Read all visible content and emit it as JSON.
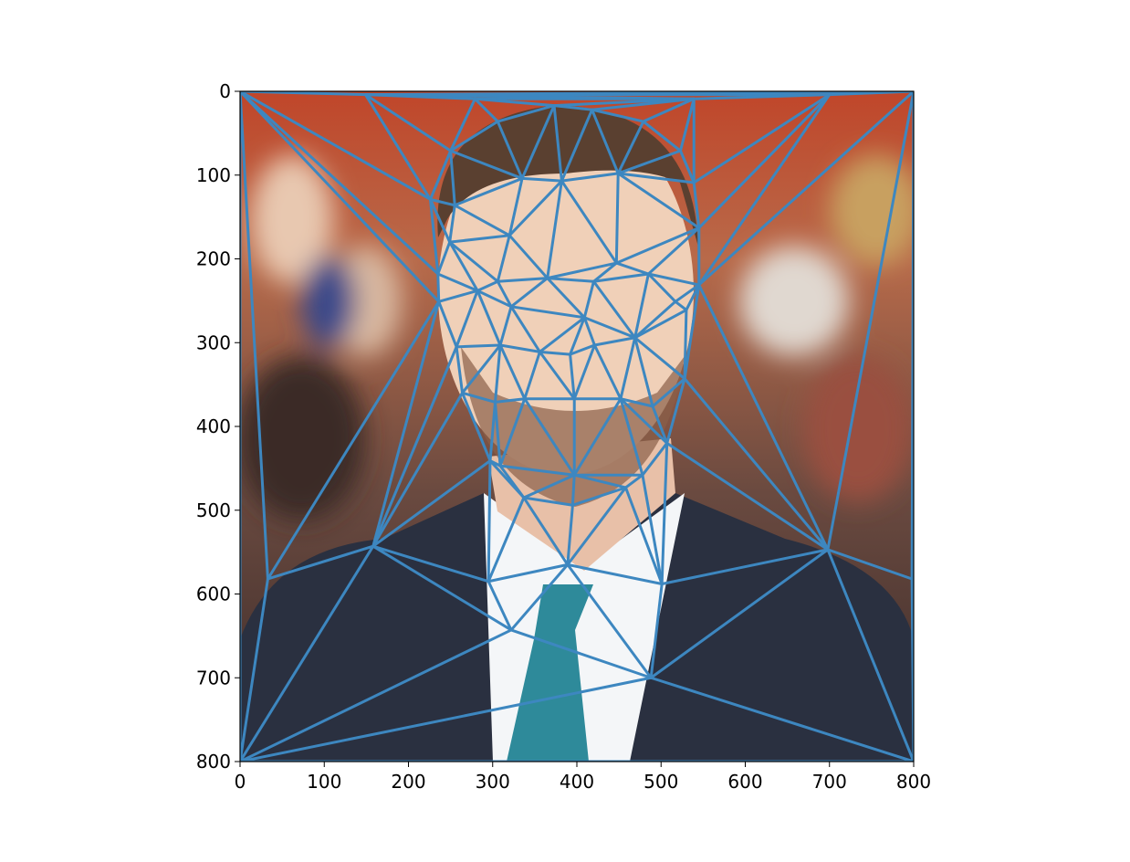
{
  "chart_data": {
    "type": "scatter",
    "subtype": "image with Delaunay triangulation overlay",
    "title": "",
    "xlabel": "",
    "ylabel": "",
    "xlim": [
      0,
      800
    ],
    "ylim": [
      800,
      0
    ],
    "y_inverted": true,
    "grid": false,
    "xticks": [
      "0",
      "100",
      "200",
      "300",
      "400",
      "500",
      "600",
      "700",
      "800"
    ],
    "yticks": [
      "0",
      "100",
      "200",
      "300",
      "400",
      "500",
      "600",
      "700",
      "800"
    ],
    "line_color": "#3d87c0",
    "points": [
      [
        0,
        0
      ],
      [
        800,
        0
      ],
      [
        0,
        800
      ],
      [
        800,
        800
      ],
      [
        33,
        582
      ],
      [
        798,
        582
      ],
      [
        149,
        4
      ],
      [
        279,
        9
      ],
      [
        539,
        9
      ],
      [
        700,
        4
      ],
      [
        158,
        543
      ],
      [
        698,
        547
      ],
      [
        295,
        585
      ],
      [
        501,
        588
      ],
      [
        389,
        565
      ],
      [
        322,
        643
      ],
      [
        488,
        700
      ],
      [
        373,
        17
      ],
      [
        306,
        36
      ],
      [
        250,
        71
      ],
      [
        226,
        129
      ],
      [
        249,
        180
      ],
      [
        235,
        218
      ],
      [
        236,
        251
      ],
      [
        257,
        305
      ],
      [
        264,
        360
      ],
      [
        297,
        441
      ],
      [
        337,
        485
      ],
      [
        395,
        494
      ],
      [
        458,
        473
      ],
      [
        507,
        420
      ],
      [
        528,
        343
      ],
      [
        530,
        261
      ],
      [
        545,
        231
      ],
      [
        545,
        163
      ],
      [
        539,
        109
      ],
      [
        523,
        71
      ],
      [
        479,
        36
      ],
      [
        418,
        22
      ],
      [
        335,
        104
      ],
      [
        382,
        107
      ],
      [
        449,
        98
      ],
      [
        320,
        172
      ],
      [
        447,
        205
      ],
      [
        255,
        136
      ],
      [
        306,
        227
      ],
      [
        365,
        223
      ],
      [
        420,
        227
      ],
      [
        485,
        218
      ],
      [
        517,
        251
      ],
      [
        282,
        238
      ],
      [
        309,
        303
      ],
      [
        356,
        311
      ],
      [
        392,
        314
      ],
      [
        421,
        303
      ],
      [
        469,
        294
      ],
      [
        322,
        257
      ],
      [
        409,
        270
      ],
      [
        338,
        367
      ],
      [
        397,
        367
      ],
      [
        452,
        367
      ],
      [
        490,
        376
      ],
      [
        303,
        371
      ],
      [
        309,
        447
      ],
      [
        397,
        458
      ],
      [
        478,
        458
      ]
    ]
  }
}
